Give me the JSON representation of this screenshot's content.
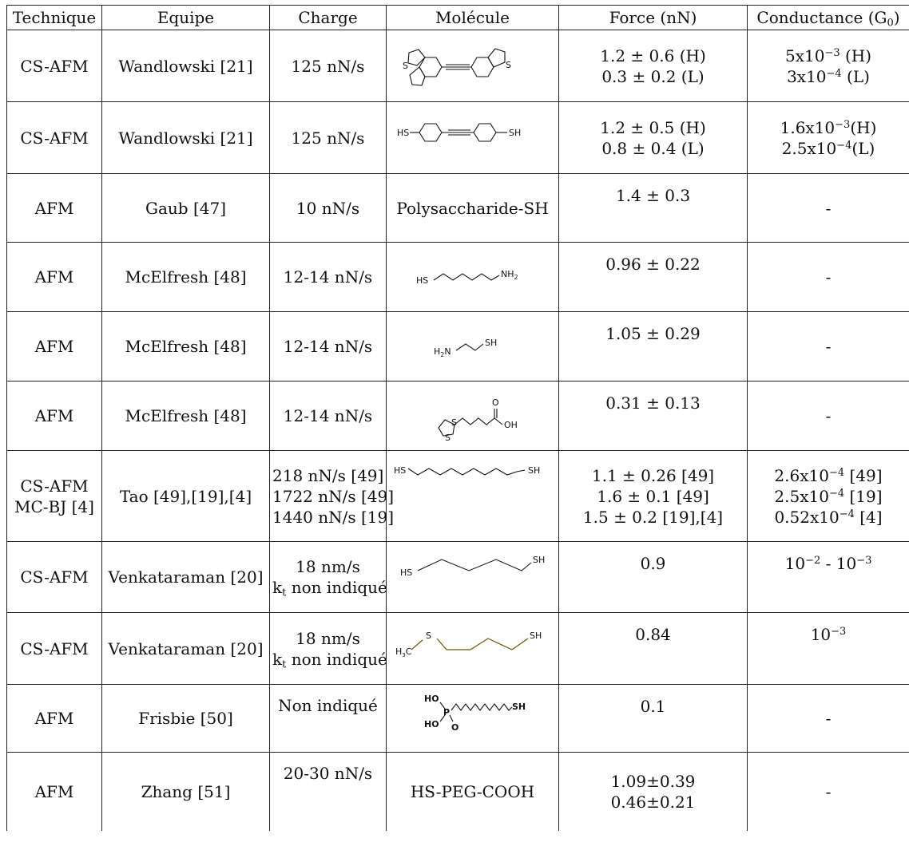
{
  "headers": {
    "technique": "Technique",
    "equipe": "Equipe",
    "charge": "Charge",
    "molecule": "Molécule",
    "force": "Force (nN)",
    "conductance_main": "Conductance (G",
    "conductance_sub": "0",
    "conductance_end": ")"
  },
  "rows": [
    {
      "technique": "CS-AFM",
      "equipe": "Wandlowski [21]",
      "charge": "125 nN/s",
      "molecule_icon": "dihydrobenzothiophene-tolane-structure",
      "force": [
        "1.2 ± 0.6 (H)",
        "0.3 ± 0.2 (L)"
      ],
      "conductance": [
        {
          "pre": "5x10",
          "exp": "−3",
          "post": " (H)"
        },
        {
          "pre": "3x10",
          "exp": "−4",
          "post": " (L)"
        }
      ]
    },
    {
      "technique": "CS-AFM",
      "equipe": "Wandlowski [21]",
      "charge": "125 nN/s",
      "molecule_icon": "tolane-dithiol-structure",
      "molecule_labels": {
        "hs": "HS",
        "sh": "SH"
      },
      "force": [
        "1.2 ± 0.5 (H)",
        "0.8 ± 0.4 (L)"
      ],
      "conductance": [
        {
          "pre": "1.6x10",
          "exp": "−3",
          "post": "(H)"
        },
        {
          "pre": "2.5x10",
          "exp": "−4",
          "post": "(L)"
        }
      ]
    },
    {
      "technique": "AFM",
      "equipe": "Gaub [47]",
      "charge": "10 nN/s",
      "molecule_text": "Polysaccharide-SH",
      "force": [
        "1.4 ± 0.3"
      ],
      "conductance_text": "-"
    },
    {
      "technique": "AFM",
      "equipe": "McElfresh [48]",
      "charge": "12-14 nN/s",
      "molecule_icon": "aminohexanethiol-structure",
      "molecule_labels": {
        "hs": "HS",
        "nh2": "NH",
        "nh2_sub": "2"
      },
      "force": [
        "0.96 ± 0.22"
      ],
      "conductance_text": "-"
    },
    {
      "technique": "AFM",
      "equipe": "McElfresh [48]",
      "charge": "12-14 nN/s",
      "molecule_icon": "cysteamine-structure",
      "molecule_labels": {
        "h2n": "H",
        "h2n_sub": "2",
        "h2n_end": "N",
        "sh": "SH"
      },
      "force": [
        "1.05 ± 0.29"
      ],
      "conductance_text": "-"
    },
    {
      "technique": "AFM",
      "equipe": "McElfresh [48]",
      "charge": "12-14 nN/s",
      "molecule_icon": "lipoic-acid-structure",
      "molecule_labels": {
        "o": "O",
        "oh": "OH",
        "s1": "S",
        "s2": "S"
      },
      "force": [
        "0.31 ± 0.13"
      ],
      "conductance_text": "-"
    },
    {
      "technique_lines": [
        "CS-AFM",
        "MC-BJ [4]"
      ],
      "equipe": "Tao [49],[19],[4]",
      "charge_lines": [
        "218 nN/s [49]",
        "1722 nN/s [49]",
        "1440 nN/s [19]"
      ],
      "molecule_icon": "decanedithiol-structure",
      "molecule_labels": {
        "hs": "HS",
        "sh": "SH"
      },
      "force": [
        "1.1 ± 0.26 [49]",
        "1.6 ± 0.1 [49]",
        "1.5 ± 0.2 [19],[4]"
      ],
      "conductance": [
        {
          "pre": "2.6x10",
          "exp": "−4",
          "post": " [49]"
        },
        {
          "pre": "2.5x10",
          "exp": "−4",
          "post": " [19]"
        },
        {
          "pre": "0.52x10",
          "exp": "−4",
          "post": " [4]"
        }
      ]
    },
    {
      "technique": "CS-AFM",
      "equipe": "Venkataraman [20]",
      "charge_main": "18 nm/s",
      "charge_k": "k",
      "charge_k_sub": "t",
      "charge_k_rest": " non indiqué",
      "molecule_icon": "hexanedithiol-structure",
      "molecule_labels": {
        "hs": "HS",
        "sh": "SH"
      },
      "force": [
        "0.9"
      ],
      "conductance_range": {
        "a": "10",
        "a_exp": "−2",
        "mid": " - ",
        "b": "10",
        "b_exp": "−3"
      }
    },
    {
      "technique": "CS-AFM",
      "equipe": "Venkataraman [20]",
      "charge_main": "18 nm/s",
      "charge_k": "k",
      "charge_k_sub": "t",
      "charge_k_rest": " non indiqué",
      "molecule_icon": "methylthio-butanethiol-structure",
      "molecule_labels": {
        "h3c": "H",
        "h3c_sub": "3",
        "h3c_end": "C",
        "s": "S",
        "sh": "SH"
      },
      "force": [
        "0.84"
      ],
      "conductance_single": {
        "base": "10",
        "exp": "−3"
      }
    },
    {
      "technique": "AFM",
      "equipe": "Frisbie [50]",
      "charge": "Non indiqué",
      "molecule_icon": "phosphonic-acid-alkanethiol-structure",
      "molecule_labels": {
        "ho1": "HO",
        "p": "P",
        "ho2": "HO",
        "o": "O",
        "sh": "SH"
      },
      "force": [
        "0.1"
      ],
      "conductance_text": "-"
    },
    {
      "technique": "AFM",
      "equipe": "Zhang [51]",
      "charge": "20-30 nN/s",
      "molecule_text": "HS-PEG-COOH",
      "force": [
        "1.09±0.39",
        "0.46±0.21"
      ],
      "conductance_text": "-"
    }
  ]
}
